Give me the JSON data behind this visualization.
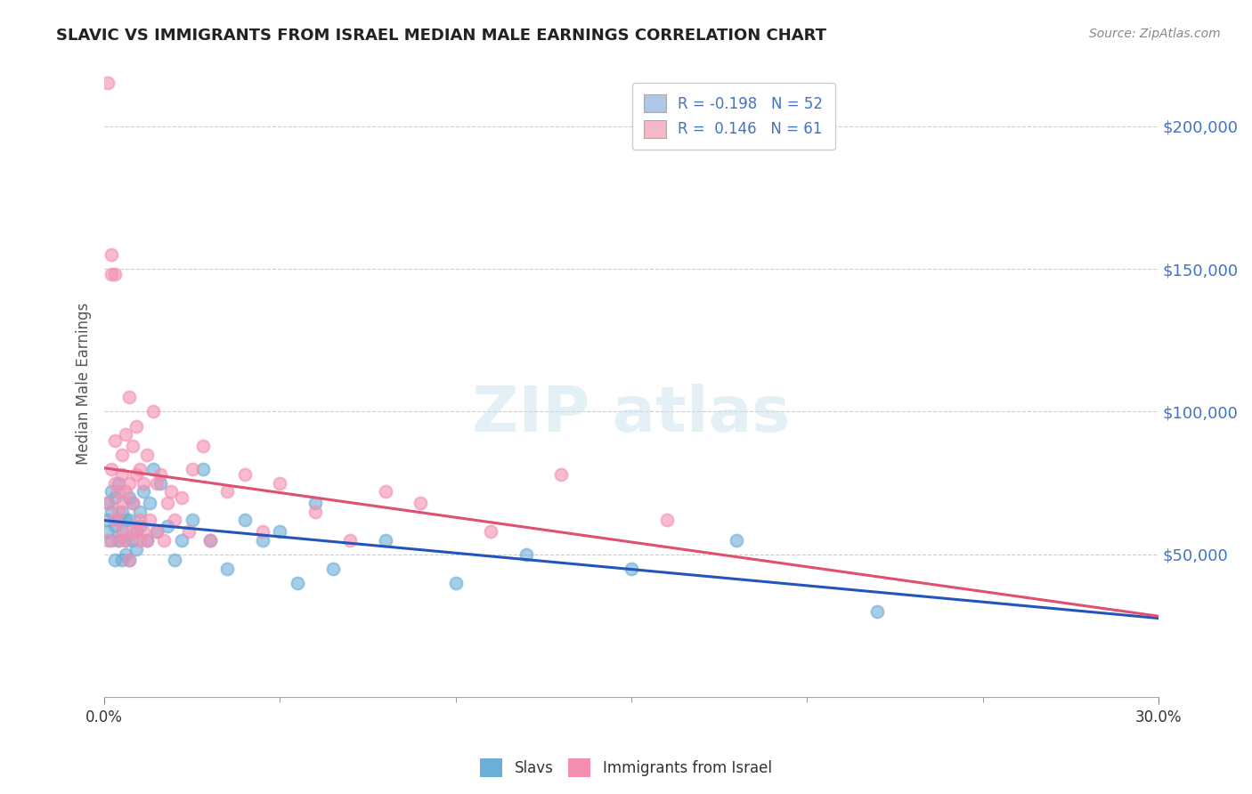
{
  "title": "SLAVIC VS IMMIGRANTS FROM ISRAEL MEDIAN MALE EARNINGS CORRELATION CHART",
  "source": "Source: ZipAtlas.com",
  "ylabel": "Median Male Earnings",
  "legend1_label": "R = -0.198   N = 52",
  "legend2_label": "R =  0.146   N = 61",
  "legend1_color": "#aec6e8",
  "legend2_color": "#f4b8c8",
  "scatter1_color": "#6baed6",
  "scatter2_color": "#f48fb1",
  "line1_color": "#2255bb",
  "line2_color": "#e05070",
  "title_color": "#222222",
  "source_color": "#888888",
  "ylim": [
    0,
    220000
  ],
  "xlim": [
    0.0,
    0.3
  ],
  "slavs_x": [
    0.001,
    0.001,
    0.001,
    0.002,
    0.002,
    0.002,
    0.003,
    0.003,
    0.003,
    0.004,
    0.004,
    0.004,
    0.005,
    0.005,
    0.005,
    0.006,
    0.006,
    0.006,
    0.007,
    0.007,
    0.007,
    0.008,
    0.008,
    0.009,
    0.009,
    0.01,
    0.01,
    0.011,
    0.012,
    0.013,
    0.014,
    0.015,
    0.016,
    0.018,
    0.02,
    0.022,
    0.025,
    0.028,
    0.03,
    0.035,
    0.04,
    0.045,
    0.05,
    0.055,
    0.06,
    0.065,
    0.08,
    0.1,
    0.12,
    0.15,
    0.18,
    0.22
  ],
  "slavs_y": [
    62000,
    58000,
    68000,
    72000,
    55000,
    65000,
    60000,
    48000,
    70000,
    62000,
    55000,
    75000,
    58000,
    65000,
    48000,
    55000,
    62000,
    50000,
    48000,
    70000,
    62000,
    55000,
    68000,
    58000,
    52000,
    60000,
    65000,
    72000,
    55000,
    68000,
    80000,
    58000,
    75000,
    60000,
    48000,
    55000,
    62000,
    80000,
    55000,
    45000,
    62000,
    55000,
    58000,
    40000,
    68000,
    45000,
    55000,
    40000,
    50000,
    45000,
    55000,
    30000
  ],
  "israel_x": [
    0.001,
    0.001,
    0.002,
    0.002,
    0.002,
    0.003,
    0.003,
    0.003,
    0.003,
    0.004,
    0.004,
    0.004,
    0.005,
    0.005,
    0.005,
    0.005,
    0.006,
    0.006,
    0.006,
    0.007,
    0.007,
    0.007,
    0.008,
    0.008,
    0.008,
    0.009,
    0.009,
    0.009,
    0.01,
    0.01,
    0.01,
    0.011,
    0.011,
    0.012,
    0.012,
    0.013,
    0.014,
    0.015,
    0.015,
    0.016,
    0.017,
    0.018,
    0.019,
    0.02,
    0.022,
    0.024,
    0.025,
    0.028,
    0.03,
    0.035,
    0.04,
    0.045,
    0.05,
    0.06,
    0.07,
    0.08,
    0.09,
    0.11,
    0.13,
    0.16,
    0.001
  ],
  "israel_y": [
    215000,
    68000,
    155000,
    148000,
    80000,
    148000,
    90000,
    75000,
    62000,
    72000,
    65000,
    55000,
    85000,
    78000,
    68000,
    58000,
    92000,
    72000,
    55000,
    105000,
    75000,
    48000,
    88000,
    68000,
    58000,
    95000,
    78000,
    58000,
    80000,
    62000,
    55000,
    75000,
    58000,
    85000,
    55000,
    62000,
    100000,
    75000,
    58000,
    78000,
    55000,
    68000,
    72000,
    62000,
    70000,
    58000,
    80000,
    88000,
    55000,
    72000,
    78000,
    58000,
    75000,
    65000,
    55000,
    72000,
    68000,
    58000,
    78000,
    62000,
    55000
  ]
}
